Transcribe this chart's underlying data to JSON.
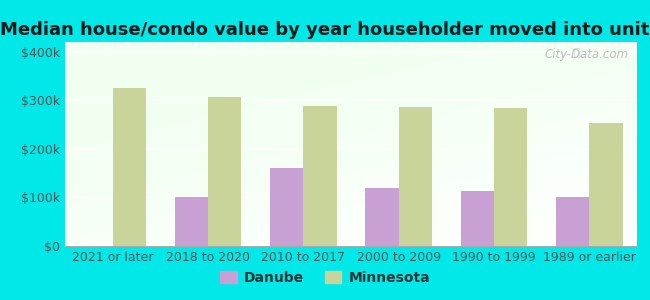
{
  "title": "Median house/condo value by year householder moved into unit",
  "categories": [
    "2021 or later",
    "2018 to 2020",
    "2010 to 2017",
    "2000 to 2009",
    "1990 to 1999",
    "1989 or earlier"
  ],
  "danube_values": [
    null,
    101000,
    160000,
    120000,
    113000,
    101000
  ],
  "minnesota_values": [
    325000,
    306000,
    288000,
    287000,
    284000,
    253000
  ],
  "danube_color": "#c8a0d4",
  "minnesota_color": "#c8d49a",
  "outer_bg_color": "#00e8e8",
  "ylabel_ticks": [
    "$0",
    "$100k",
    "$200k",
    "$300k",
    "$400k"
  ],
  "ytick_values": [
    0,
    100000,
    200000,
    300000,
    400000
  ],
  "ylim": [
    0,
    420000
  ],
  "bar_width": 0.35,
  "legend_labels": [
    "Danube",
    "Minnesota"
  ],
  "watermark_text": "City-Data.com",
  "title_fontsize": 13,
  "tick_fontsize": 9,
  "legend_fontsize": 10
}
